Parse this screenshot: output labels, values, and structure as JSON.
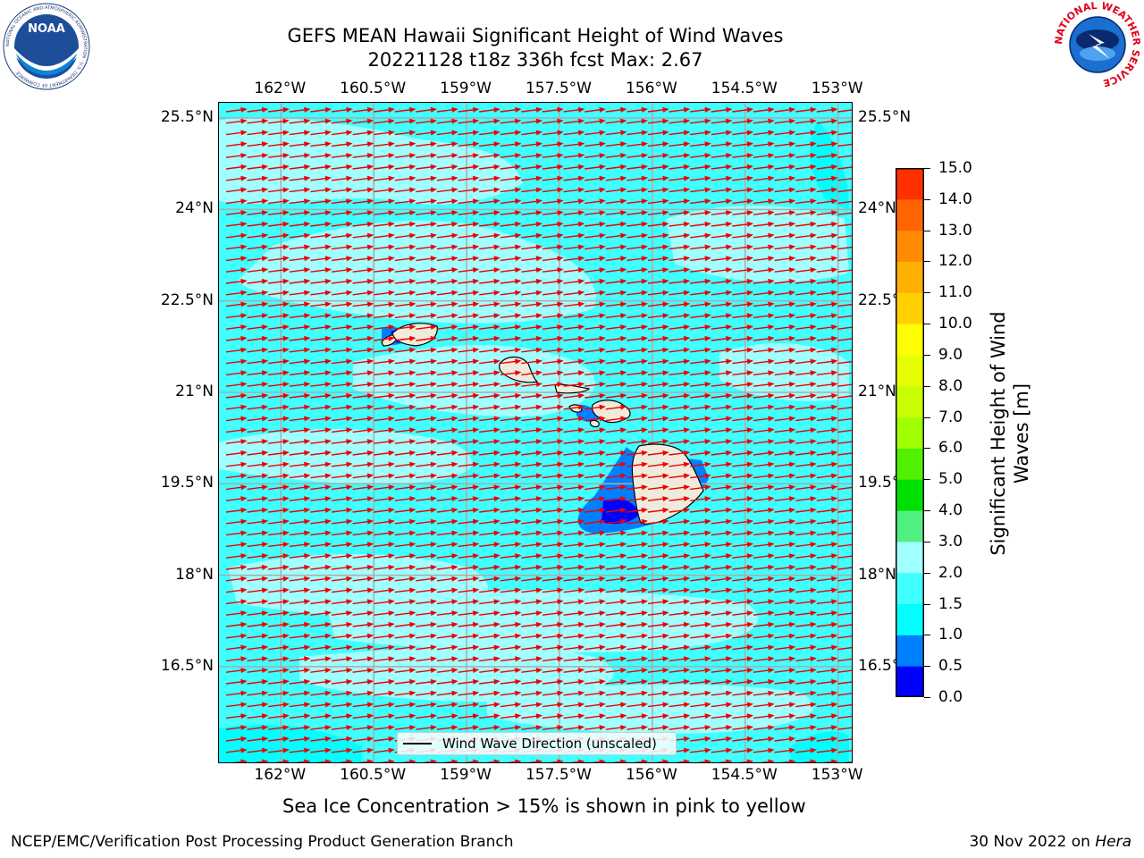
{
  "title": {
    "line1": "GEFS MEAN Hawaii Significant Height of Wind Waves",
    "line2": "20221128 t18z 336h fcst   Max: 2.67"
  },
  "logos": {
    "noaa_text": "NOAA",
    "noaa_ring_text": "NATIONAL OCEANIC AND ATMOSPHERIC ADMINISTRATION · U.S. DEPARTMENT OF COMMERCE",
    "nws_ring_text": "NATIONAL WEATHER SERVICE"
  },
  "map": {
    "lon_labels": [
      "162°W",
      "160.5°W",
      "159°W",
      "157.5°W",
      "156°W",
      "154.5°W",
      "153°W"
    ],
    "lat_labels": [
      "25.5°N",
      "24°N",
      "22.5°N",
      "21°N",
      "19.5°N",
      "18°N",
      "16.5°N"
    ],
    "lon_range": [
      -163,
      -152.75
    ],
    "lat_range": [
      14.9,
      25.75
    ],
    "wind_direction_deg_from_north": 250,
    "legend_label": "Wind Wave Direction (unscaled)"
  },
  "colorbar": {
    "label_line1": "Significant Height of Wind",
    "label_line2": "Waves [m]",
    "ticks": [
      "0.0",
      "0.5",
      "1.0",
      "1.5",
      "2.0",
      "3.0",
      "4.0",
      "5.0",
      "6.0",
      "7.0",
      "8.0",
      "9.0",
      "10.0",
      "11.0",
      "12.0",
      "13.0",
      "14.0",
      "15.0"
    ],
    "colors": [
      "#0000ff",
      "#0080ff",
      "#00ffff",
      "#40ffff",
      "#a0ffff",
      "#50f080",
      "#00e000",
      "#50f000",
      "#a0ff00",
      "#c8ff00",
      "#e6ff00",
      "#ffff00",
      "#ffd000",
      "#ffb000",
      "#ff8c00",
      "#ff6400",
      "#ff3000"
    ]
  },
  "footer": {
    "sea_ice_note": "Sea Ice Concentration > 15% is shown in pink to yellow",
    "branch": "NCEP/EMC/Verification Post Processing Product Generation Branch",
    "date_prefix": "30 Nov 2022 on ",
    "machine": "Hera"
  },
  "colors": {
    "arrow": "#ee0000",
    "land": "#efebdc",
    "grid": "#aaaaaa"
  }
}
